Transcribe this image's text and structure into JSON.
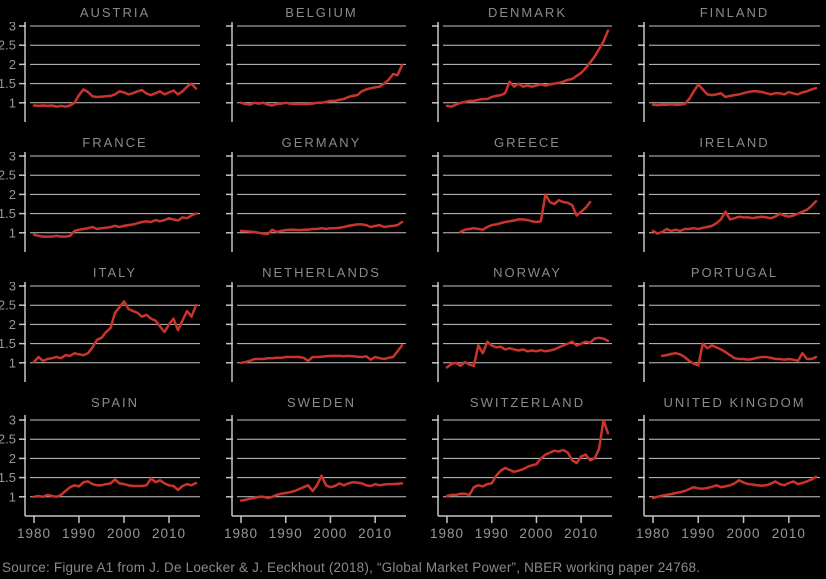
{
  "page": {
    "background": "#000000",
    "source_note": "Source: Figure A1 from J. De Loecker & J. Eeckhout (2018), “Global Market Power”, NBER working paper 24768."
  },
  "style": {
    "line_color": "#c9342c",
    "grid_color": "#c6c6c6",
    "axis_color": "#c6c6c6",
    "title_color": "#8a8a8a",
    "tick_label_color": "#979797"
  },
  "chart_data": {
    "type": "line",
    "layout": {
      "rows": 4,
      "cols": 4,
      "grid": true,
      "ylim": [
        0.5,
        3.0
      ],
      "yticks": [
        1,
        1.5,
        2,
        2.5,
        3
      ],
      "xticks": [
        1980,
        1990,
        2000,
        2010
      ],
      "x_range": [
        1980,
        2016
      ],
      "y_labels_on": "first-column-only",
      "x_labels_on": "last-row-only",
      "ylabel": "",
      "xlabel": "",
      "legend": "none"
    },
    "charts": [
      {
        "title": "AUSTRIA",
        "x_start": 1980,
        "values": [
          0.93,
          0.92,
          0.93,
          0.92,
          0.93,
          0.9,
          0.92,
          0.9,
          0.93,
          1.0,
          1.2,
          1.35,
          1.28,
          1.17,
          1.15,
          1.16,
          1.17,
          1.18,
          1.22,
          1.3,
          1.27,
          1.22,
          1.25,
          1.3,
          1.33,
          1.24,
          1.2,
          1.25,
          1.3,
          1.22,
          1.27,
          1.32,
          1.22,
          1.3,
          1.42,
          1.5,
          1.37
        ]
      },
      {
        "title": "BELGIUM",
        "x_start": 1980,
        "values": [
          1.0,
          0.97,
          0.95,
          1.0,
          0.98,
          1.0,
          0.95,
          0.93,
          0.97,
          0.98,
          1.0,
          0.98,
          0.97,
          0.97,
          0.97,
          0.97,
          0.98,
          1.0,
          1.0,
          1.02,
          1.05,
          1.05,
          1.08,
          1.1,
          1.15,
          1.18,
          1.2,
          1.3,
          1.35,
          1.38,
          1.4,
          1.42,
          1.5,
          1.6,
          1.75,
          1.72,
          1.98
        ]
      },
      {
        "title": "DENMARK",
        "x_start": 1980,
        "values": [
          0.92,
          0.9,
          0.95,
          1.0,
          1.02,
          1.05,
          1.05,
          1.08,
          1.1,
          1.1,
          1.15,
          1.18,
          1.2,
          1.25,
          1.55,
          1.42,
          1.5,
          1.42,
          1.45,
          1.42,
          1.45,
          1.48,
          1.45,
          1.48,
          1.5,
          1.52,
          1.55,
          1.6,
          1.62,
          1.7,
          1.78,
          1.9,
          2.05,
          2.2,
          2.4,
          2.6,
          2.88
        ]
      },
      {
        "title": "FINLAND",
        "x_start": 1980,
        "values": [
          0.95,
          0.94,
          0.95,
          0.95,
          0.96,
          0.95,
          0.95,
          0.97,
          1.1,
          1.3,
          1.48,
          1.35,
          1.22,
          1.2,
          1.22,
          1.25,
          1.15,
          1.18,
          1.2,
          1.22,
          1.25,
          1.28,
          1.3,
          1.3,
          1.28,
          1.25,
          1.22,
          1.25,
          1.25,
          1.22,
          1.28,
          1.24,
          1.22,
          1.27,
          1.3,
          1.35,
          1.38
        ]
      },
      {
        "title": "FRANCE",
        "x_start": 1980,
        "values": [
          0.95,
          0.92,
          0.9,
          0.9,
          0.9,
          0.92,
          0.9,
          0.9,
          0.92,
          1.05,
          1.08,
          1.1,
          1.12,
          1.15,
          1.1,
          1.12,
          1.13,
          1.15,
          1.18,
          1.15,
          1.18,
          1.2,
          1.22,
          1.25,
          1.28,
          1.3,
          1.28,
          1.33,
          1.3,
          1.33,
          1.38,
          1.35,
          1.32,
          1.4,
          1.38,
          1.45,
          1.5
        ]
      },
      {
        "title": "GERMANY",
        "x_start": 1980,
        "values": [
          1.05,
          1.04,
          1.03,
          1.02,
          1.0,
          0.98,
          0.97,
          1.08,
          1.02,
          1.05,
          1.07,
          1.08,
          1.08,
          1.07,
          1.08,
          1.08,
          1.1,
          1.1,
          1.12,
          1.1,
          1.12,
          1.12,
          1.13,
          1.15,
          1.18,
          1.2,
          1.22,
          1.22,
          1.2,
          1.15,
          1.18,
          1.2,
          1.15,
          1.17,
          1.18,
          1.2,
          1.28
        ]
      },
      {
        "title": "GREECE",
        "x_start": 1983,
        "values": [
          1.02,
          1.08,
          1.1,
          1.12,
          1.1,
          1.08,
          1.15,
          1.2,
          1.22,
          1.25,
          1.28,
          1.3,
          1.32,
          1.35,
          1.35,
          1.33,
          1.3,
          1.28,
          1.3,
          2.0,
          1.8,
          1.75,
          1.85,
          1.8,
          1.78,
          1.72,
          1.45,
          1.55,
          1.65,
          1.8
        ]
      },
      {
        "title": "IRELAND",
        "x_start": 1980,
        "values": [
          1.05,
          0.98,
          1.02,
          1.1,
          1.05,
          1.08,
          1.05,
          1.1,
          1.1,
          1.12,
          1.1,
          1.13,
          1.15,
          1.18,
          1.25,
          1.35,
          1.55,
          1.35,
          1.38,
          1.42,
          1.4,
          1.4,
          1.38,
          1.4,
          1.42,
          1.4,
          1.38,
          1.42,
          1.5,
          1.45,
          1.42,
          1.45,
          1.5,
          1.55,
          1.6,
          1.7,
          1.82
        ]
      },
      {
        "title": "ITALY",
        "x_start": 1980,
        "values": [
          1.02,
          1.15,
          1.05,
          1.1,
          1.12,
          1.15,
          1.12,
          1.2,
          1.18,
          1.25,
          1.22,
          1.2,
          1.25,
          1.4,
          1.6,
          1.65,
          1.8,
          1.9,
          2.3,
          2.45,
          2.6,
          2.4,
          2.35,
          2.3,
          2.2,
          2.25,
          2.15,
          2.1,
          1.95,
          1.8,
          2.0,
          2.15,
          1.85,
          2.1,
          2.35,
          2.2,
          2.5
        ]
      },
      {
        "title": "NETHERLANDS",
        "x_start": 1980,
        "values": [
          1.0,
          1.02,
          1.05,
          1.1,
          1.1,
          1.1,
          1.12,
          1.12,
          1.13,
          1.13,
          1.15,
          1.15,
          1.15,
          1.15,
          1.13,
          1.05,
          1.15,
          1.15,
          1.16,
          1.17,
          1.18,
          1.18,
          1.18,
          1.17,
          1.18,
          1.17,
          1.16,
          1.15,
          1.17,
          1.08,
          1.15,
          1.12,
          1.1,
          1.13,
          1.15,
          1.3,
          1.45
        ]
      },
      {
        "title": "NORWAY",
        "x_start": 1980,
        "values": [
          0.88,
          0.97,
          1.0,
          0.92,
          1.02,
          0.95,
          0.92,
          1.45,
          1.25,
          1.55,
          1.45,
          1.4,
          1.42,
          1.35,
          1.38,
          1.35,
          1.32,
          1.35,
          1.3,
          1.32,
          1.3,
          1.33,
          1.3,
          1.32,
          1.35,
          1.4,
          1.45,
          1.5,
          1.55,
          1.45,
          1.5,
          1.55,
          1.52,
          1.63,
          1.65,
          1.63,
          1.57
        ]
      },
      {
        "title": "PORTUGAL",
        "x_start": 1982,
        "values": [
          1.18,
          1.2,
          1.23,
          1.25,
          1.22,
          1.15,
          1.05,
          0.98,
          0.93,
          1.5,
          1.38,
          1.45,
          1.4,
          1.35,
          1.28,
          1.2,
          1.12,
          1.1,
          1.1,
          1.08,
          1.1,
          1.13,
          1.15,
          1.15,
          1.13,
          1.1,
          1.1,
          1.08,
          1.1,
          1.08,
          1.05,
          1.25,
          1.1,
          1.1,
          1.15
        ]
      },
      {
        "title": "SPAIN",
        "x_start": 1980,
        "values": [
          1.0,
          1.02,
          1.0,
          1.05,
          1.02,
          1.0,
          1.05,
          1.15,
          1.25,
          1.3,
          1.27,
          1.38,
          1.4,
          1.33,
          1.3,
          1.3,
          1.33,
          1.35,
          1.45,
          1.35,
          1.33,
          1.3,
          1.28,
          1.28,
          1.28,
          1.3,
          1.48,
          1.38,
          1.43,
          1.35,
          1.3,
          1.28,
          1.18,
          1.28,
          1.33,
          1.3,
          1.36
        ]
      },
      {
        "title": "SWEDEN",
        "x_start": 1980,
        "values": [
          0.9,
          0.92,
          0.95,
          0.97,
          1.0,
          1.0,
          0.97,
          1.0,
          1.05,
          1.08,
          1.1,
          1.12,
          1.15,
          1.2,
          1.25,
          1.3,
          1.15,
          1.3,
          1.55,
          1.3,
          1.25,
          1.28,
          1.35,
          1.3,
          1.35,
          1.38,
          1.37,
          1.35,
          1.3,
          1.28,
          1.33,
          1.3,
          1.32,
          1.33,
          1.33,
          1.34,
          1.35
        ]
      },
      {
        "title": "SWITZERLAND",
        "x_start": 1980,
        "values": [
          1.02,
          1.05,
          1.05,
          1.08,
          1.08,
          1.05,
          1.25,
          1.3,
          1.27,
          1.33,
          1.35,
          1.55,
          1.68,
          1.75,
          1.7,
          1.65,
          1.68,
          1.72,
          1.78,
          1.82,
          1.85,
          2.0,
          2.1,
          2.15,
          2.2,
          2.18,
          2.22,
          2.15,
          1.95,
          1.88,
          2.05,
          2.1,
          1.95,
          2.0,
          2.25,
          3.0,
          2.65
        ]
      },
      {
        "title": "UNITED KINGDOM",
        "x_start": 1980,
        "values": [
          0.97,
          1.0,
          1.03,
          1.05,
          1.07,
          1.1,
          1.12,
          1.15,
          1.2,
          1.25,
          1.22,
          1.21,
          1.23,
          1.26,
          1.3,
          1.25,
          1.27,
          1.3,
          1.35,
          1.43,
          1.37,
          1.33,
          1.32,
          1.3,
          1.29,
          1.3,
          1.34,
          1.4,
          1.33,
          1.3,
          1.36,
          1.4,
          1.33,
          1.36,
          1.4,
          1.45,
          1.52
        ]
      }
    ]
  }
}
